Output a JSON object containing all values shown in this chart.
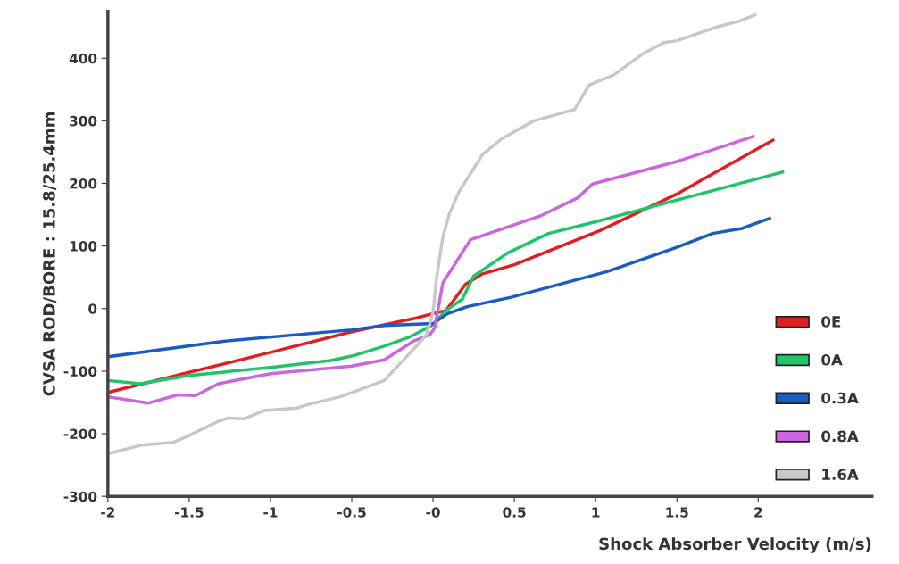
{
  "chart_data": {
    "type": "line",
    "xlabel": "Shock Absorber Velocity (m/s)",
    "ylabel": "CVSA ROD/BORE : 15.8/25.4mm",
    "xlim": [
      -2,
      2.7
    ],
    "ylim": [
      -300,
      475
    ],
    "xticks": [
      -2,
      -1.5,
      -1,
      -0.5,
      {
        "value": 0,
        "label": "-0"
      },
      0.5,
      1,
      1.5,
      2
    ],
    "yticks": [
      -300,
      -200,
      -100,
      0,
      100,
      200,
      300,
      400
    ],
    "grid": false,
    "legend": "bottom right",
    "marker": "none",
    "line_style": "solid",
    "series": [
      {
        "name": "0E",
        "color": "#e02020",
        "x": [
          -2,
          -1.5,
          -1,
          -0.5,
          -0.1,
          0,
          0.08,
          0.2,
          0.3,
          0.5,
          1.03,
          1.5,
          1.65,
          2.09
        ],
        "values": [
          -134,
          -102,
          -70,
          -37,
          -15,
          -8,
          -3,
          39,
          55,
          70,
          125,
          183,
          205,
          269
        ]
      },
      {
        "name": "0A",
        "color": "#22c46a",
        "x": [
          -2,
          -1.8,
          -1.5,
          -1,
          -0.63,
          -0.5,
          -0.3,
          -0.14,
          0,
          0.07,
          0.18,
          0.25,
          0.46,
          0.71,
          0.99,
          1.48,
          2.15
        ],
        "values": [
          -115,
          -120,
          -107,
          -94,
          -83,
          -76,
          -60,
          -45,
          -26,
          -5,
          15,
          52,
          89,
          120,
          138,
          172,
          218
        ]
      },
      {
        "name": "0.3A",
        "color": "#1a5cbf",
        "x": [
          -2,
          -1.28,
          -0.5,
          -0.3,
          0,
          0.09,
          0.21,
          0.48,
          1.07,
          1.48,
          1.72,
          1.9,
          2.07
        ],
        "values": [
          -77,
          -52,
          -34,
          -27,
          -24,
          -8,
          3,
          18,
          59,
          96,
          120,
          128,
          144
        ]
      },
      {
        "name": "0.8A",
        "color": "#cc66e0",
        "x": [
          -2,
          -1.75,
          -1.57,
          -1.46,
          -1.32,
          -1,
          -0.5,
          -0.3,
          -0.12,
          -0.02,
          0.01,
          0.06,
          0.23,
          0.66,
          0.89,
          0.98,
          1.5,
          1.97
        ],
        "values": [
          -141,
          -151,
          -138,
          -139,
          -120,
          -104,
          -92,
          -82,
          -52,
          -42,
          -31,
          41,
          110,
          148,
          177,
          199,
          235,
          275
        ]
      },
      {
        "name": "1.6A",
        "color": "#c8c8c8",
        "x": [
          -2,
          -1.79,
          -1.6,
          -1.51,
          -1.32,
          -1.26,
          -1.16,
          -1.04,
          -0.84,
          -0.75,
          -0.57,
          -0.3,
          -0.16,
          -0.04,
          0,
          0.02,
          0.06,
          0.1,
          0.16,
          0.29,
          0.3,
          0.42,
          0.62,
          0.76,
          0.87,
          0.96,
          1.11,
          1.29,
          1.42,
          1.5,
          1.58,
          1.76,
          1.88,
          1.98
        ],
        "values": [
          -232,
          -218,
          -214,
          -204,
          -180,
          -175,
          -176,
          -163,
          -159,
          -152,
          -141,
          -115,
          -76,
          -42,
          -6,
          46,
          114,
          151,
          187,
          240,
          245,
          271,
          300,
          310,
          318,
          357,
          373,
          407,
          425,
          428,
          435,
          451,
          459,
          469
        ]
      }
    ]
  }
}
